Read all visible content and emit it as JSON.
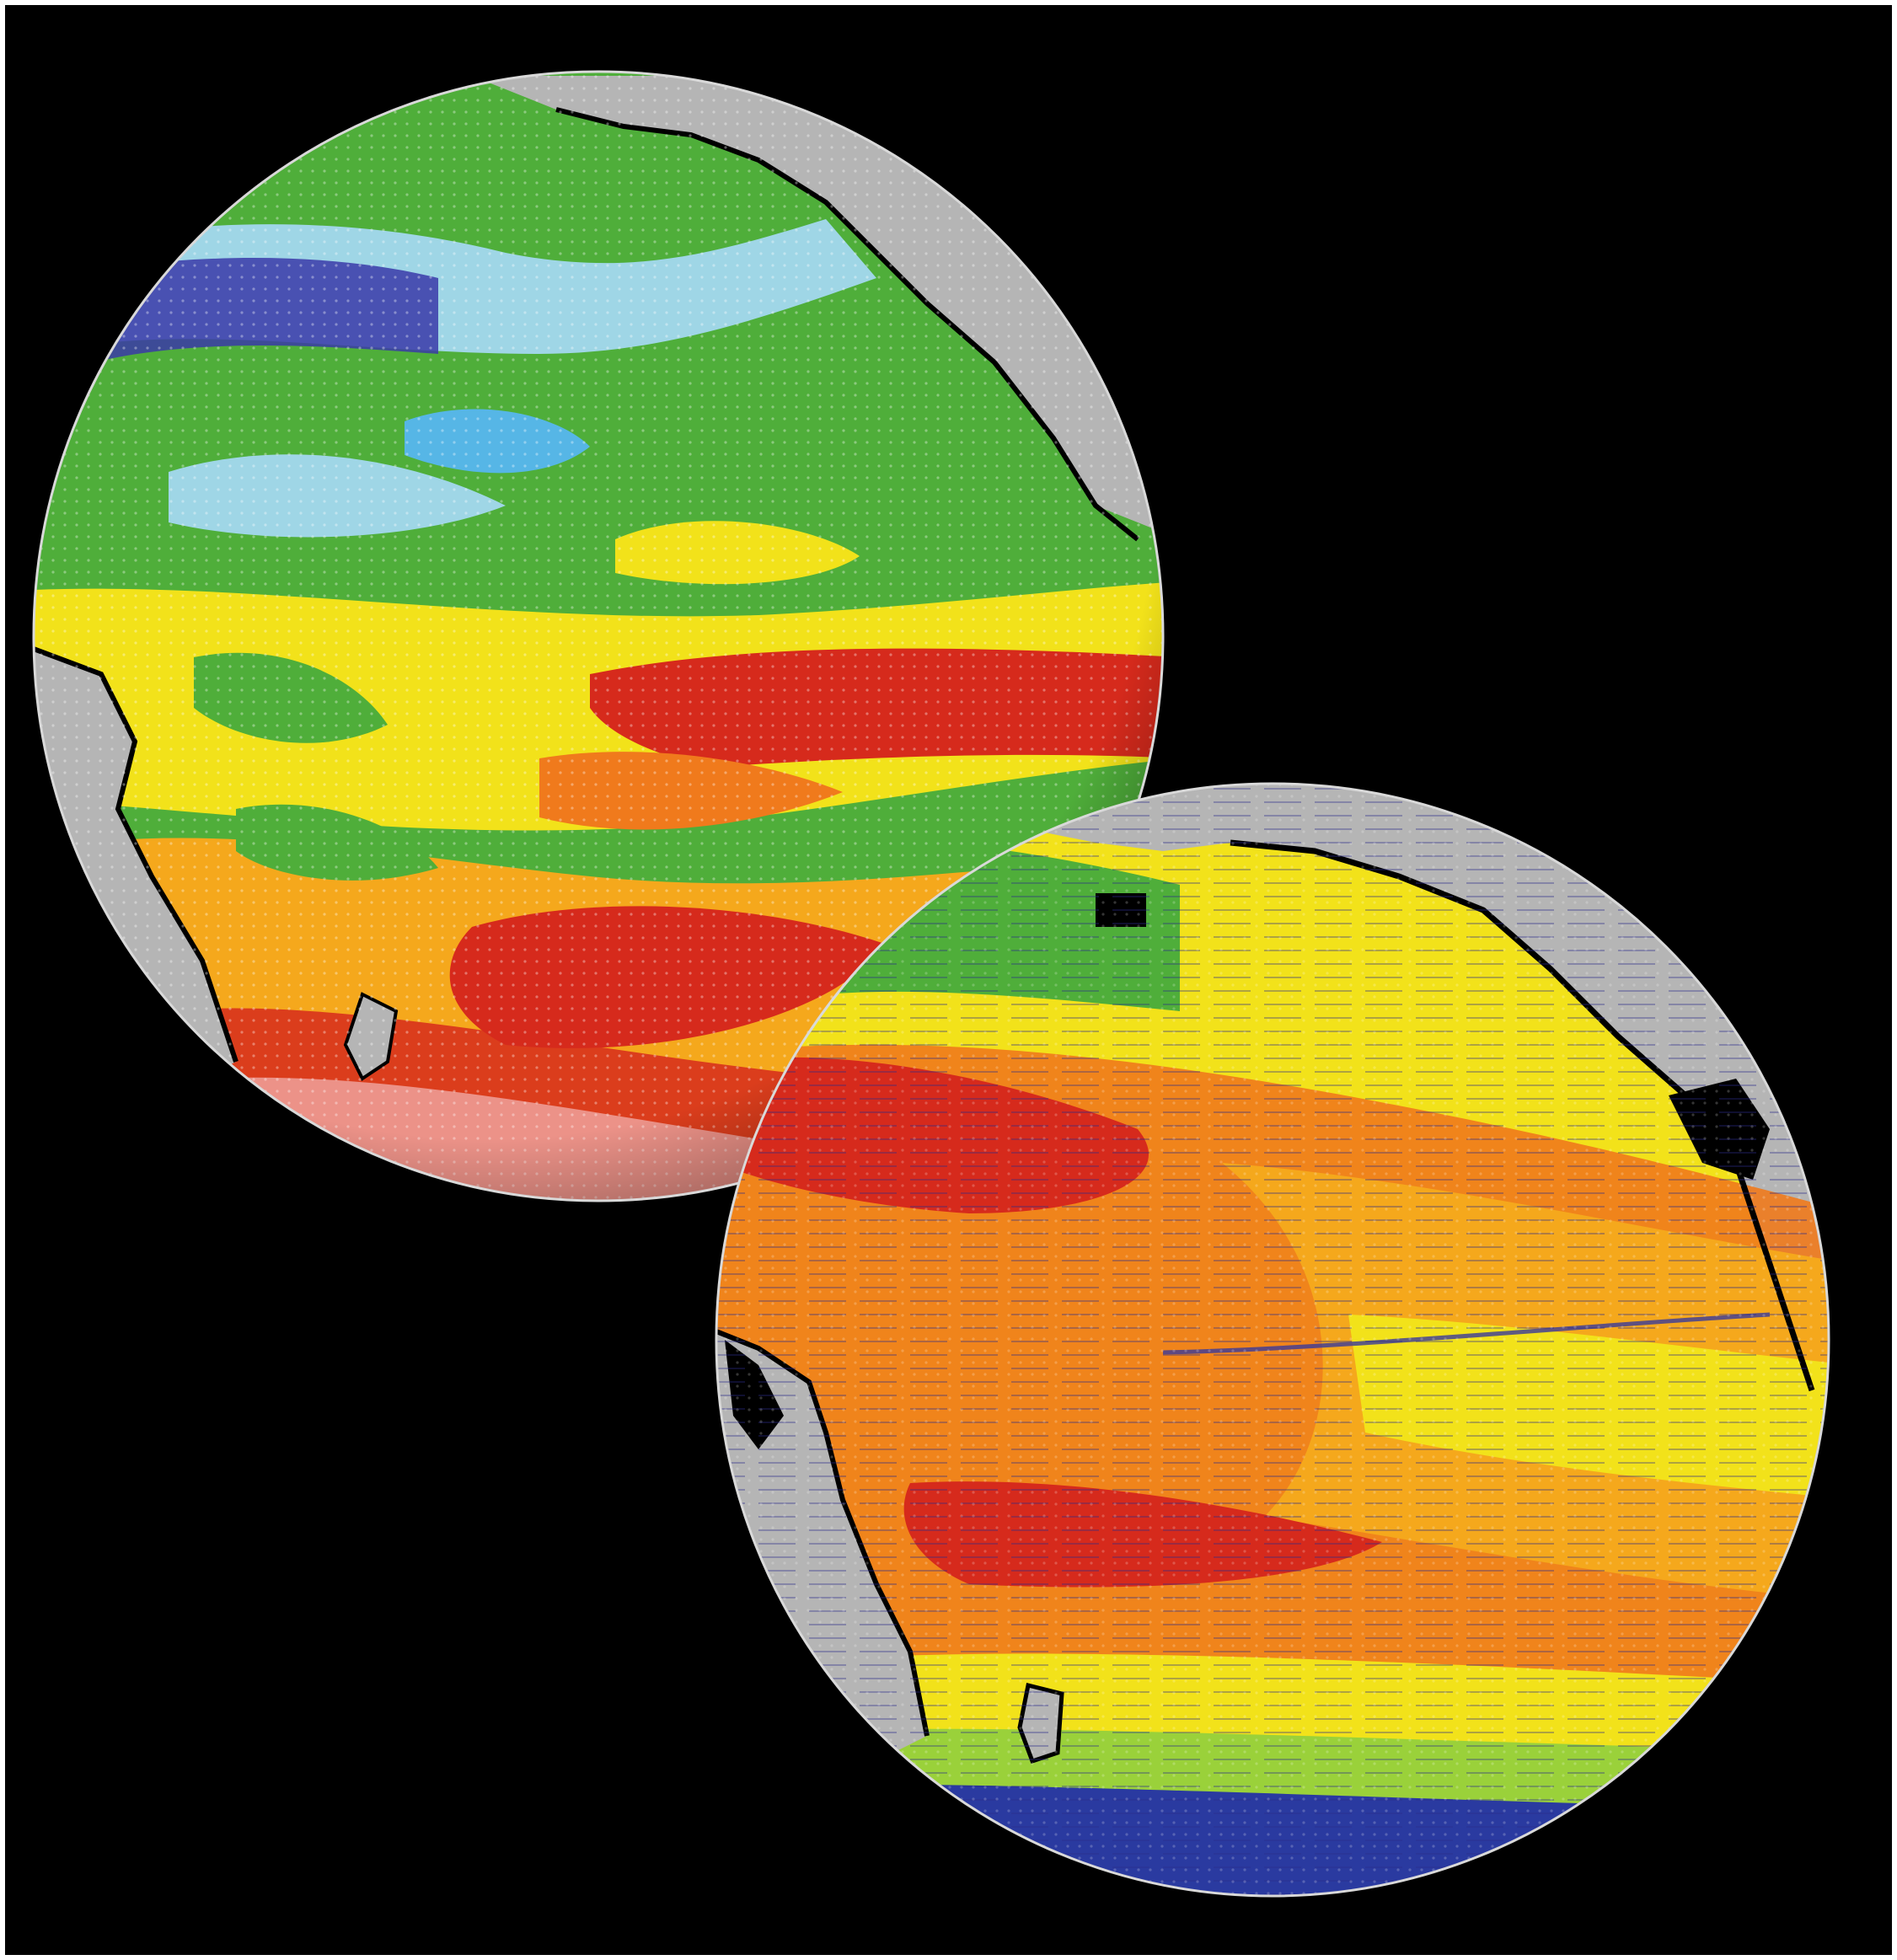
{
  "figure": {
    "background": "#000000",
    "border_color": "#ffffff",
    "globes": [
      {
        "id": "globe-top-left",
        "variable_colors": [
          "#7a1e1e",
          "#d62a1c",
          "#f07a1c",
          "#f5a81c",
          "#f2e21a",
          "#9ad13a",
          "#4fae3a",
          "#9fd6e6",
          "#56b6e6",
          "#3a3aa8"
        ]
      },
      {
        "id": "globe-bottom-right",
        "variable_colors": [
          "#d62a1c",
          "#f07a1c",
          "#f5a81c",
          "#f2e21a",
          "#9ad13a",
          "#4fae3a",
          "#2a3aa0"
        ]
      }
    ],
    "land_color": "#b5b5b5",
    "coast_color": "#000000"
  }
}
